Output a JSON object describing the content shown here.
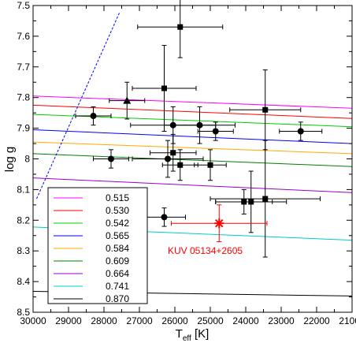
{
  "chart_data": {
    "type": "scatter",
    "xlabel_main": "T",
    "xlabel_sub": "eff",
    "xlabel_unit": " [K]",
    "ylabel": "log g",
    "xlim": [
      30000,
      21000
    ],
    "ylim": [
      7.5,
      8.5
    ],
    "x_reversed": true,
    "y_reversed": true,
    "grid": false,
    "x_ticks": [
      30000,
      29000,
      28000,
      27000,
      26000,
      25000,
      24000,
      23000,
      22000,
      21000
    ],
    "x_tick_labels": [
      "30000",
      "29000",
      "28000",
      "27000",
      "26000",
      "25000",
      "24000",
      "23000",
      "22000",
      "21000"
    ],
    "y_ticks": [
      7.5,
      7.6,
      7.7,
      7.8,
      7.9,
      8.0,
      8.1,
      8.2,
      8.3,
      8.4,
      8.5
    ],
    "y_tick_labels": [
      "7.5",
      "7.6",
      "7.7",
      "7.8",
      "7.9",
      "8",
      "8.1",
      "8.2",
      "8.3",
      "8.4",
      "8.5"
    ],
    "legend_position": "bottom-left",
    "tracks": [
      {
        "name": "0.515",
        "color": "#ff00ff",
        "points": [
          [
            30000,
            7.795
          ],
          [
            21000,
            7.835
          ]
        ]
      },
      {
        "name": "0.530",
        "color": "#ff0000",
        "points": [
          [
            30000,
            7.825
          ],
          [
            21000,
            7.868
          ]
        ]
      },
      {
        "name": "0.542",
        "color": "#00cc00",
        "points": [
          [
            30000,
            7.855
          ],
          [
            21000,
            7.895
          ]
        ]
      },
      {
        "name": "0.565",
        "color": "#0000ff",
        "points": [
          [
            30000,
            7.905
          ],
          [
            21000,
            7.95
          ]
        ]
      },
      {
        "name": "0.584",
        "color": "#ffaa00",
        "points": [
          [
            30000,
            7.945
          ],
          [
            21000,
            7.983
          ]
        ]
      },
      {
        "name": "0.609",
        "color": "#008000",
        "points": [
          [
            30000,
            7.983
          ],
          [
            21000,
            8.025
          ]
        ]
      },
      {
        "name": "0.664",
        "color": "#9900cc",
        "points": [
          [
            30000,
            8.062
          ],
          [
            21000,
            8.11
          ]
        ]
      },
      {
        "name": "0.741",
        "color": "#00cccc",
        "points": [
          [
            30000,
            8.222
          ],
          [
            21000,
            8.265
          ]
        ]
      },
      {
        "name": "0.870",
        "color": "#000000",
        "points": [
          [
            30000,
            8.432
          ],
          [
            21000,
            8.447
          ]
        ]
      }
    ],
    "dashed_line": {
      "color": "#0000ff",
      "points": [
        [
          29900,
          8.13
        ],
        [
          27550,
          7.52
        ]
      ]
    },
    "series": [
      {
        "marker": "circle",
        "color": "#000000",
        "points": [
          {
            "x": 28300,
            "y": 7.86,
            "xerr": 500,
            "yerr": 0.03
          },
          {
            "x": 27800,
            "y": 8.0,
            "xerr": 500,
            "yerr": 0.03
          },
          {
            "x": 26200,
            "y": 8.0,
            "xerr": 1000,
            "yerr": 0.06
          },
          {
            "x": 26050,
            "y": 7.89,
            "xerr": 1200,
            "yerr": 0.06
          },
          {
            "x": 25300,
            "y": 7.89,
            "xerr": 1000,
            "yerr": 0.06
          },
          {
            "x": 24850,
            "y": 7.91,
            "xerr": 500,
            "yerr": 0.03
          },
          {
            "x": 22450,
            "y": 7.91,
            "xerr": 600,
            "yerr": 0.03
          },
          {
            "x": 26300,
            "y": 8.19,
            "xerr": 600,
            "yerr": 0.03
          }
        ]
      },
      {
        "marker": "square",
        "color": "#000000",
        "points": [
          {
            "x": 25850,
            "y": 7.57,
            "xerr": 1200,
            "yerr": 0.1
          },
          {
            "x": 26300,
            "y": 7.77,
            "xerr": 900,
            "yerr": 0.14
          },
          {
            "x": 23450,
            "y": 7.84,
            "xerr": 1000,
            "yerr": 0.13
          },
          {
            "x": 26050,
            "y": 7.98,
            "xerr": 650,
            "yerr": 0.06
          },
          {
            "x": 25850,
            "y": 8.02,
            "xerr": 500,
            "yerr": 0.05
          },
          {
            "x": 25000,
            "y": 8.02,
            "xerr": 450,
            "yerr": 0.05
          },
          {
            "x": 24050,
            "y": 8.14,
            "xerr": 800,
            "yerr": 0.04
          },
          {
            "x": 23850,
            "y": 8.14,
            "xerr": 1000,
            "yerr": 0.1
          },
          {
            "x": 23450,
            "y": 8.13,
            "xerr": 1550,
            "yerr": 0.19
          }
        ]
      },
      {
        "marker": "triangle",
        "color": "#000000",
        "points": [
          {
            "x": 27350,
            "y": 7.81,
            "xerr": 500,
            "yerr": 0.06
          }
        ]
      },
      {
        "marker": "star",
        "color": "#ff0000",
        "label": "KUV 05134+2605",
        "points": [
          {
            "x": 24750,
            "y": 8.21,
            "xerr": 1350,
            "yerr": 0.06
          }
        ]
      }
    ]
  }
}
